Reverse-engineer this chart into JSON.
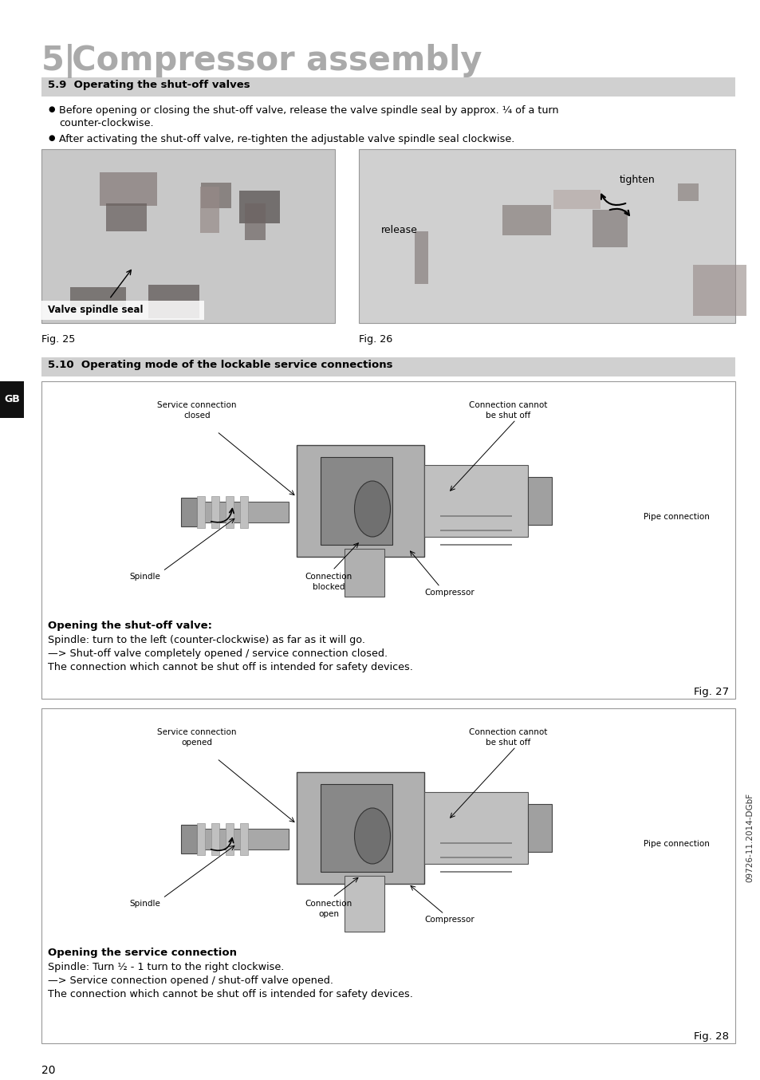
{
  "title_num": "5",
  "title_sep": "|",
  "title_text": "Compressor assembly",
  "title_color": "#aaaaaa",
  "title_fontsize": 30,
  "bg_color": "#ffffff",
  "section_59_title": "5.9  Operating the shut-off valves",
  "section_59_bg": "#d0d0d0",
  "bullet1_line1": "Before opening or closing the shut-off valve, release the valve spindle seal by approx. ¼ of a turn",
  "bullet1_line2": "counter-clockwise.",
  "bullet2": "After activating the shut-off valve, re-tighten the adjustable valve spindle seal clockwise.",
  "fig25_label": "Fig. 25",
  "fig26_label": "Fig. 26",
  "fig25_caption": "Valve spindle seal",
  "fig26_tighten": "tighten",
  "fig26_release": "release",
  "section_510_title": "5.10  Operating mode of the lockable service connections",
  "section_510_bg": "#d0d0d0",
  "fig27_label": "Fig. 27",
  "fig28_label": "Fig. 28",
  "box1_title": "Opening the shut-off valve:",
  "box1_line1": "Spindle: turn to the left (counter-clockwise) as far as it will go.",
  "box1_line2": "—> Shut-off valve completely opened / service connection closed.",
  "box1_line3": "The connection which cannot be shut off is intended for safety devices.",
  "box2_title": "Opening the service connection",
  "box2_line1": "Spindle: Turn ½ - 1 turn to the right clockwise.",
  "box2_line2": "—> Service connection opened / shut-off valve opened.",
  "box2_line3": "The connection which cannot be shut off is intended for safety devices.",
  "d1_svc_conn": "Service connection\nclosed",
  "d1_conn_cannot": "Connection cannot\nbe shut off",
  "d1_spindle": "Spindle",
  "d1_conn_blocked": "Connection\nblocked",
  "d1_pipe_conn": "Pipe connection",
  "d1_compressor": "Compressor",
  "d2_svc_conn": "Service connection\nopened",
  "d2_conn_cannot": "Connection cannot\nbe shut off",
  "d2_spindle": "Spindle",
  "d2_conn_open": "Connection\nopen",
  "d2_pipe_conn": "Pipe connection",
  "d2_compressor": "Compressor",
  "gb_label": "GB",
  "page_number": "20",
  "watermark": "09726-11.2014-DGbF"
}
